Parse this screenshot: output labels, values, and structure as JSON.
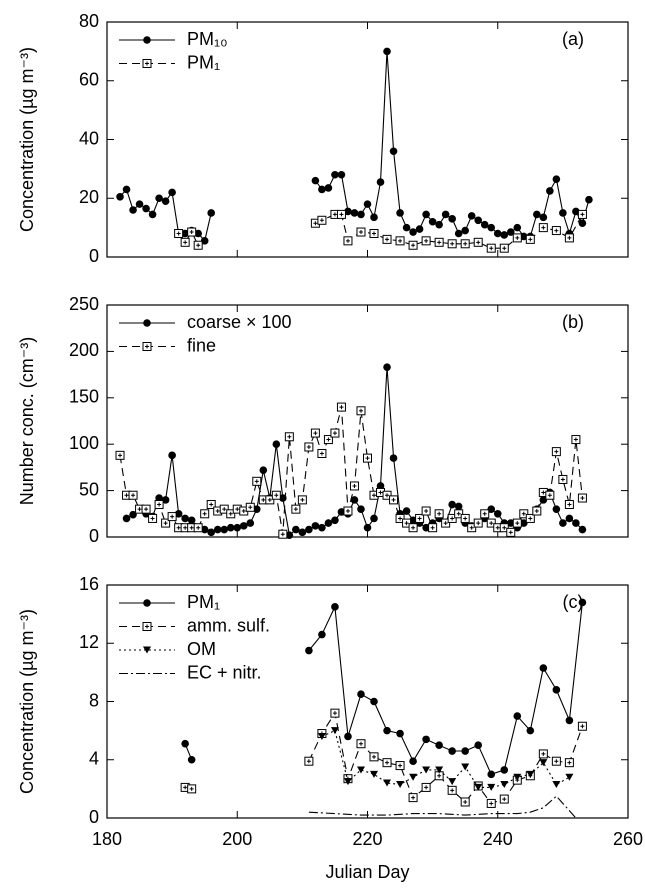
{
  "chart_data": [
    {
      "type": "line",
      "annotation": "(a)",
      "ylabel": "Concentration (µg m⁻³)",
      "xlim": [
        180,
        260
      ],
      "xticks": [
        180,
        200,
        220,
        240,
        260
      ],
      "xtick_labels": false,
      "ylim": [
        0,
        80
      ],
      "yticks": [
        0,
        20,
        40,
        60,
        80
      ],
      "series": [
        {
          "name": "PM₁₀",
          "color": "#000000",
          "marker": "circle",
          "linestyle": "solid",
          "x": [
            182,
            183,
            184,
            185,
            186,
            187,
            188,
            189,
            190,
            191,
            192,
            193,
            194,
            195,
            196,
            null,
            212,
            213,
            214,
            215,
            216,
            217,
            218,
            219,
            220,
            221,
            222,
            223,
            224,
            225,
            226,
            227,
            228,
            229,
            230,
            231,
            232,
            233,
            234,
            235,
            236,
            237,
            238,
            239,
            240,
            241,
            242,
            243,
            244,
            245,
            246,
            247,
            248,
            249,
            250,
            251,
            252,
            253,
            254
          ],
          "values": [
            20.5,
            23,
            16,
            18,
            16.5,
            14.5,
            20,
            19,
            22,
            8,
            8,
            9,
            8,
            5.5,
            15,
            null,
            26,
            23,
            23.5,
            28,
            28,
            15.5,
            15,
            14.5,
            18,
            13.5,
            25.5,
            70,
            36,
            15,
            10,
            8.5,
            9.5,
            14.5,
            12,
            11,
            14.5,
            13,
            8,
            9,
            14,
            12.5,
            11,
            10,
            8,
            7.5,
            8.5,
            10,
            7,
            7,
            14.5,
            13.5,
            22.5,
            26.5,
            15,
            8,
            15.5,
            11.5,
            19.5
          ]
        },
        {
          "name": "PM₁",
          "color": "#000000",
          "marker": "square",
          "linestyle": "dashed",
          "x": [
            191,
            192,
            193,
            194,
            null,
            212,
            213,
            215,
            216,
            217,
            219,
            221,
            223,
            225,
            227,
            229,
            231,
            233,
            235,
            237,
            239,
            241,
            243,
            245,
            247,
            249,
            251,
            253
          ],
          "values": [
            8,
            5,
            8.5,
            4,
            null,
            11.5,
            12.5,
            14.5,
            14.5,
            5.5,
            8.5,
            8,
            6,
            5.5,
            4,
            5.5,
            5,
            4.5,
            4.5,
            5,
            3,
            3,
            6.5,
            6,
            10,
            9,
            6.5,
            14.5
          ]
        }
      ]
    },
    {
      "type": "line",
      "annotation": "(b)",
      "ylabel": "Number conc. (cm⁻³)",
      "xlim": [
        180,
        260
      ],
      "xticks": [
        180,
        200,
        220,
        240,
        260
      ],
      "xtick_labels": false,
      "ylim": [
        0,
        250
      ],
      "yticks": [
        0,
        50,
        100,
        150,
        200,
        250
      ],
      "series": [
        {
          "name": "coarse × 100",
          "color": "#000000",
          "marker": "circle",
          "linestyle": "solid",
          "x": [
            183,
            184,
            185,
            186,
            187,
            188,
            189,
            190,
            191,
            192,
            193,
            194,
            195,
            196,
            197,
            198,
            199,
            200,
            201,
            202,
            203,
            204,
            205,
            206,
            207,
            208,
            209,
            210,
            211,
            212,
            213,
            214,
            215,
            216,
            217,
            218,
            219,
            220,
            221,
            222,
            223,
            224,
            225,
            226,
            227,
            228,
            229,
            230,
            231,
            232,
            233,
            234,
            235,
            236,
            237,
            238,
            239,
            240,
            241,
            242,
            243,
            244,
            245,
            246,
            247,
            248,
            249,
            250,
            251,
            252,
            253
          ],
          "values": [
            20,
            24,
            30,
            25,
            22,
            42,
            40,
            88,
            25,
            20,
            18,
            10,
            8,
            5,
            8,
            8,
            10,
            10,
            12,
            15,
            30,
            72,
            42,
            100,
            42,
            2,
            8,
            5,
            8,
            12,
            10,
            15,
            18,
            27,
            25,
            40,
            30,
            10,
            20,
            55,
            183,
            85,
            25,
            28,
            18,
            15,
            10,
            15,
            20,
            15,
            35,
            33,
            15,
            12,
            15,
            20,
            30,
            25,
            15,
            15,
            10,
            15,
            20,
            30,
            40,
            48,
            30,
            15,
            20,
            15,
            8
          ]
        },
        {
          "name": "fine",
          "color": "#000000",
          "marker": "square",
          "linestyle": "dashed",
          "x": [
            182,
            183,
            184,
            185,
            186,
            187,
            188,
            189,
            190,
            191,
            192,
            193,
            194,
            195,
            196,
            197,
            198,
            199,
            200,
            201,
            202,
            203,
            204,
            205,
            206,
            207,
            208,
            209,
            210,
            211,
            212,
            213,
            214,
            215,
            216,
            217,
            218,
            219,
            220,
            221,
            222,
            223,
            224,
            225,
            226,
            227,
            228,
            229,
            230,
            231,
            232,
            233,
            234,
            235,
            236,
            237,
            238,
            239,
            240,
            241,
            242,
            243,
            244,
            245,
            246,
            247,
            248,
            249,
            250,
            251,
            252,
            253
          ],
          "values": [
            88,
            45,
            45,
            30,
            30,
            20,
            35,
            15,
            22,
            10,
            10,
            10,
            10,
            25,
            35,
            28,
            30,
            25,
            30,
            28,
            32,
            60,
            40,
            40,
            45,
            3,
            108,
            30,
            40,
            97,
            112,
            90,
            105,
            112,
            140,
            28,
            55,
            136,
            85,
            45,
            48,
            45,
            40,
            20,
            15,
            10,
            20,
            28,
            10,
            25,
            15,
            20,
            25,
            20,
            10,
            15,
            25,
            15,
            10,
            10,
            5,
            15,
            25,
            20,
            28,
            48,
            45,
            92,
            62,
            35,
            105,
            42
          ]
        }
      ]
    },
    {
      "type": "line",
      "annotation": "(c)",
      "ylabel": "Concentration (µg m⁻³)",
      "xlabel": "Julian Day",
      "xlim": [
        180,
        260
      ],
      "xticks": [
        180,
        200,
        220,
        240,
        260
      ],
      "xtick_labels": true,
      "ylim": [
        0,
        16
      ],
      "yticks": [
        0,
        4,
        8,
        12,
        16
      ],
      "series": [
        {
          "name": "PM₁",
          "color": "#000000",
          "marker": "circle",
          "linestyle": "solid",
          "x": [
            192,
            193,
            null,
            211,
            213,
            215,
            217,
            219,
            221,
            223,
            225,
            227,
            229,
            231,
            233,
            235,
            237,
            239,
            241,
            243,
            245,
            247,
            249,
            251,
            253
          ],
          "values": [
            5.1,
            4.0,
            null,
            11.5,
            12.6,
            14.5,
            5.6,
            8.5,
            8.0,
            6.0,
            5.8,
            3.9,
            5.4,
            5.0,
            4.6,
            4.6,
            5.0,
            3.0,
            3.3,
            7.0,
            6.0,
            10.3,
            8.8,
            6.7,
            14.8
          ]
        },
        {
          "name": "amm. sulf.",
          "color": "#000000",
          "marker": "square",
          "linestyle": "dashed",
          "x": [
            192,
            193,
            null,
            211,
            213,
            215,
            217,
            219,
            221,
            223,
            225,
            227,
            229,
            231,
            233,
            235,
            237,
            239,
            241,
            243,
            245,
            247,
            249,
            251,
            253
          ],
          "values": [
            2.1,
            2.0,
            null,
            3.9,
            5.8,
            7.2,
            2.7,
            5.1,
            4.2,
            3.8,
            3.6,
            1.4,
            2.1,
            2.9,
            1.9,
            1.1,
            2.2,
            1.0,
            1.3,
            2.6,
            2.9,
            4.4,
            3.9,
            3.8,
            6.3
          ]
        },
        {
          "name": "OM",
          "color": "#000000",
          "marker": "triangle",
          "linestyle": "dotted",
          "x": [
            213,
            215,
            217,
            219,
            221,
            223,
            225,
            227,
            229,
            231,
            233,
            235,
            237,
            239,
            241,
            243,
            245,
            247,
            249,
            251
          ],
          "values": [
            5.6,
            6.0,
            2.5,
            3.3,
            3.0,
            2.4,
            2.3,
            2.8,
            3.3,
            3.3,
            2.5,
            3.5,
            2.1,
            2.1,
            2.3,
            2.8,
            3.0,
            3.8,
            2.3,
            2.8
          ]
        },
        {
          "name": "EC + nitr.",
          "color": "#000000",
          "marker": "none",
          "linestyle": "dashdot",
          "x": [
            211,
            215,
            219,
            223,
            227,
            231,
            235,
            239,
            243,
            245,
            247,
            249,
            251,
            252
          ],
          "values": [
            0.4,
            0.3,
            0.2,
            0.2,
            0.3,
            0.3,
            0.2,
            0.3,
            0.3,
            0.4,
            0.7,
            1.5,
            0.5,
            0.0
          ]
        }
      ]
    }
  ]
}
